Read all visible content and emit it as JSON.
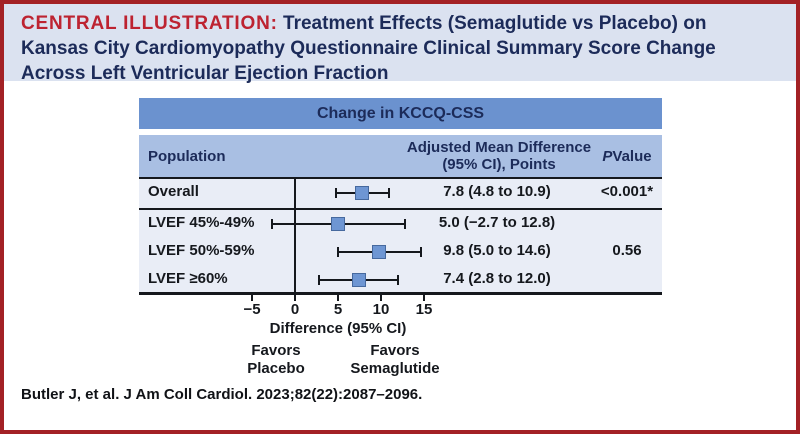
{
  "header": {
    "kicker": "CENTRAL ILLUSTRATION:",
    "line1_rest": "Treatment Effects (Semaglutide vs Placebo) on",
    "line2": "Kansas City Cardiomyopathy Questionnaire Clinical Summary Score Change",
    "line3": "Across Left Ventricular Ejection Fraction"
  },
  "table": {
    "band_title": "Change in KCCQ-CSS",
    "columns": {
      "population": "Population",
      "amd_line1": "Adjusted Mean Difference",
      "amd_line2": "(95% CI), Points",
      "p_label_italic": "P",
      "p_label_rest": " Value"
    }
  },
  "chart_data": {
    "type": "forest",
    "title": "Change in KCCQ-CSS",
    "xlabel": "Difference (95% CI)",
    "xlim": [
      -6.5,
      16.5
    ],
    "xticks": [
      -5,
      0,
      5,
      10,
      15
    ],
    "xtick_labels": [
      "−5",
      "0",
      "5",
      "10",
      "15"
    ],
    "zero_reference_line": 0,
    "favors_left": [
      "Favors",
      "Placebo"
    ],
    "favors_right": [
      "Favors",
      "Semaglutide"
    ],
    "rows": [
      {
        "label": "Overall",
        "estimate": 7.8,
        "ci_low": 4.8,
        "ci_high": 10.9,
        "value_text": "7.8 (4.8 to 10.9)",
        "p_value": "<0.001*"
      },
      {
        "label": "LVEF 45%-49%",
        "estimate": 5.0,
        "ci_low": -2.7,
        "ci_high": 12.8,
        "value_text": "5.0 (−2.7 to 12.8)",
        "p_value": ""
      },
      {
        "label": "LVEF 50%-59%",
        "estimate": 9.8,
        "ci_low": 5.0,
        "ci_high": 14.6,
        "value_text": "9.8 (5.0 to 14.6)",
        "p_value": "0.56"
      },
      {
        "label": "LVEF ≥60%",
        "estimate": 7.4,
        "ci_low": 2.8,
        "ci_high": 12.0,
        "value_text": "7.4 (2.8 to 12.0)",
        "p_value": ""
      }
    ]
  },
  "footer": {
    "citation": "Butler J, et al. J Am Coll Cardiol. 2023;82(22):2087–2096."
  },
  "colors": {
    "border-red": "#a32125",
    "title-red": "#bd2331",
    "title-bg": "#dbe2f0",
    "navy": "#1c2b59",
    "band-blue": "#6b92cf",
    "band-light": "#a9bfe3",
    "body-bg": "#e9edf6",
    "marker-fill": "#6e96d3",
    "marker-border": "#46699e"
  }
}
